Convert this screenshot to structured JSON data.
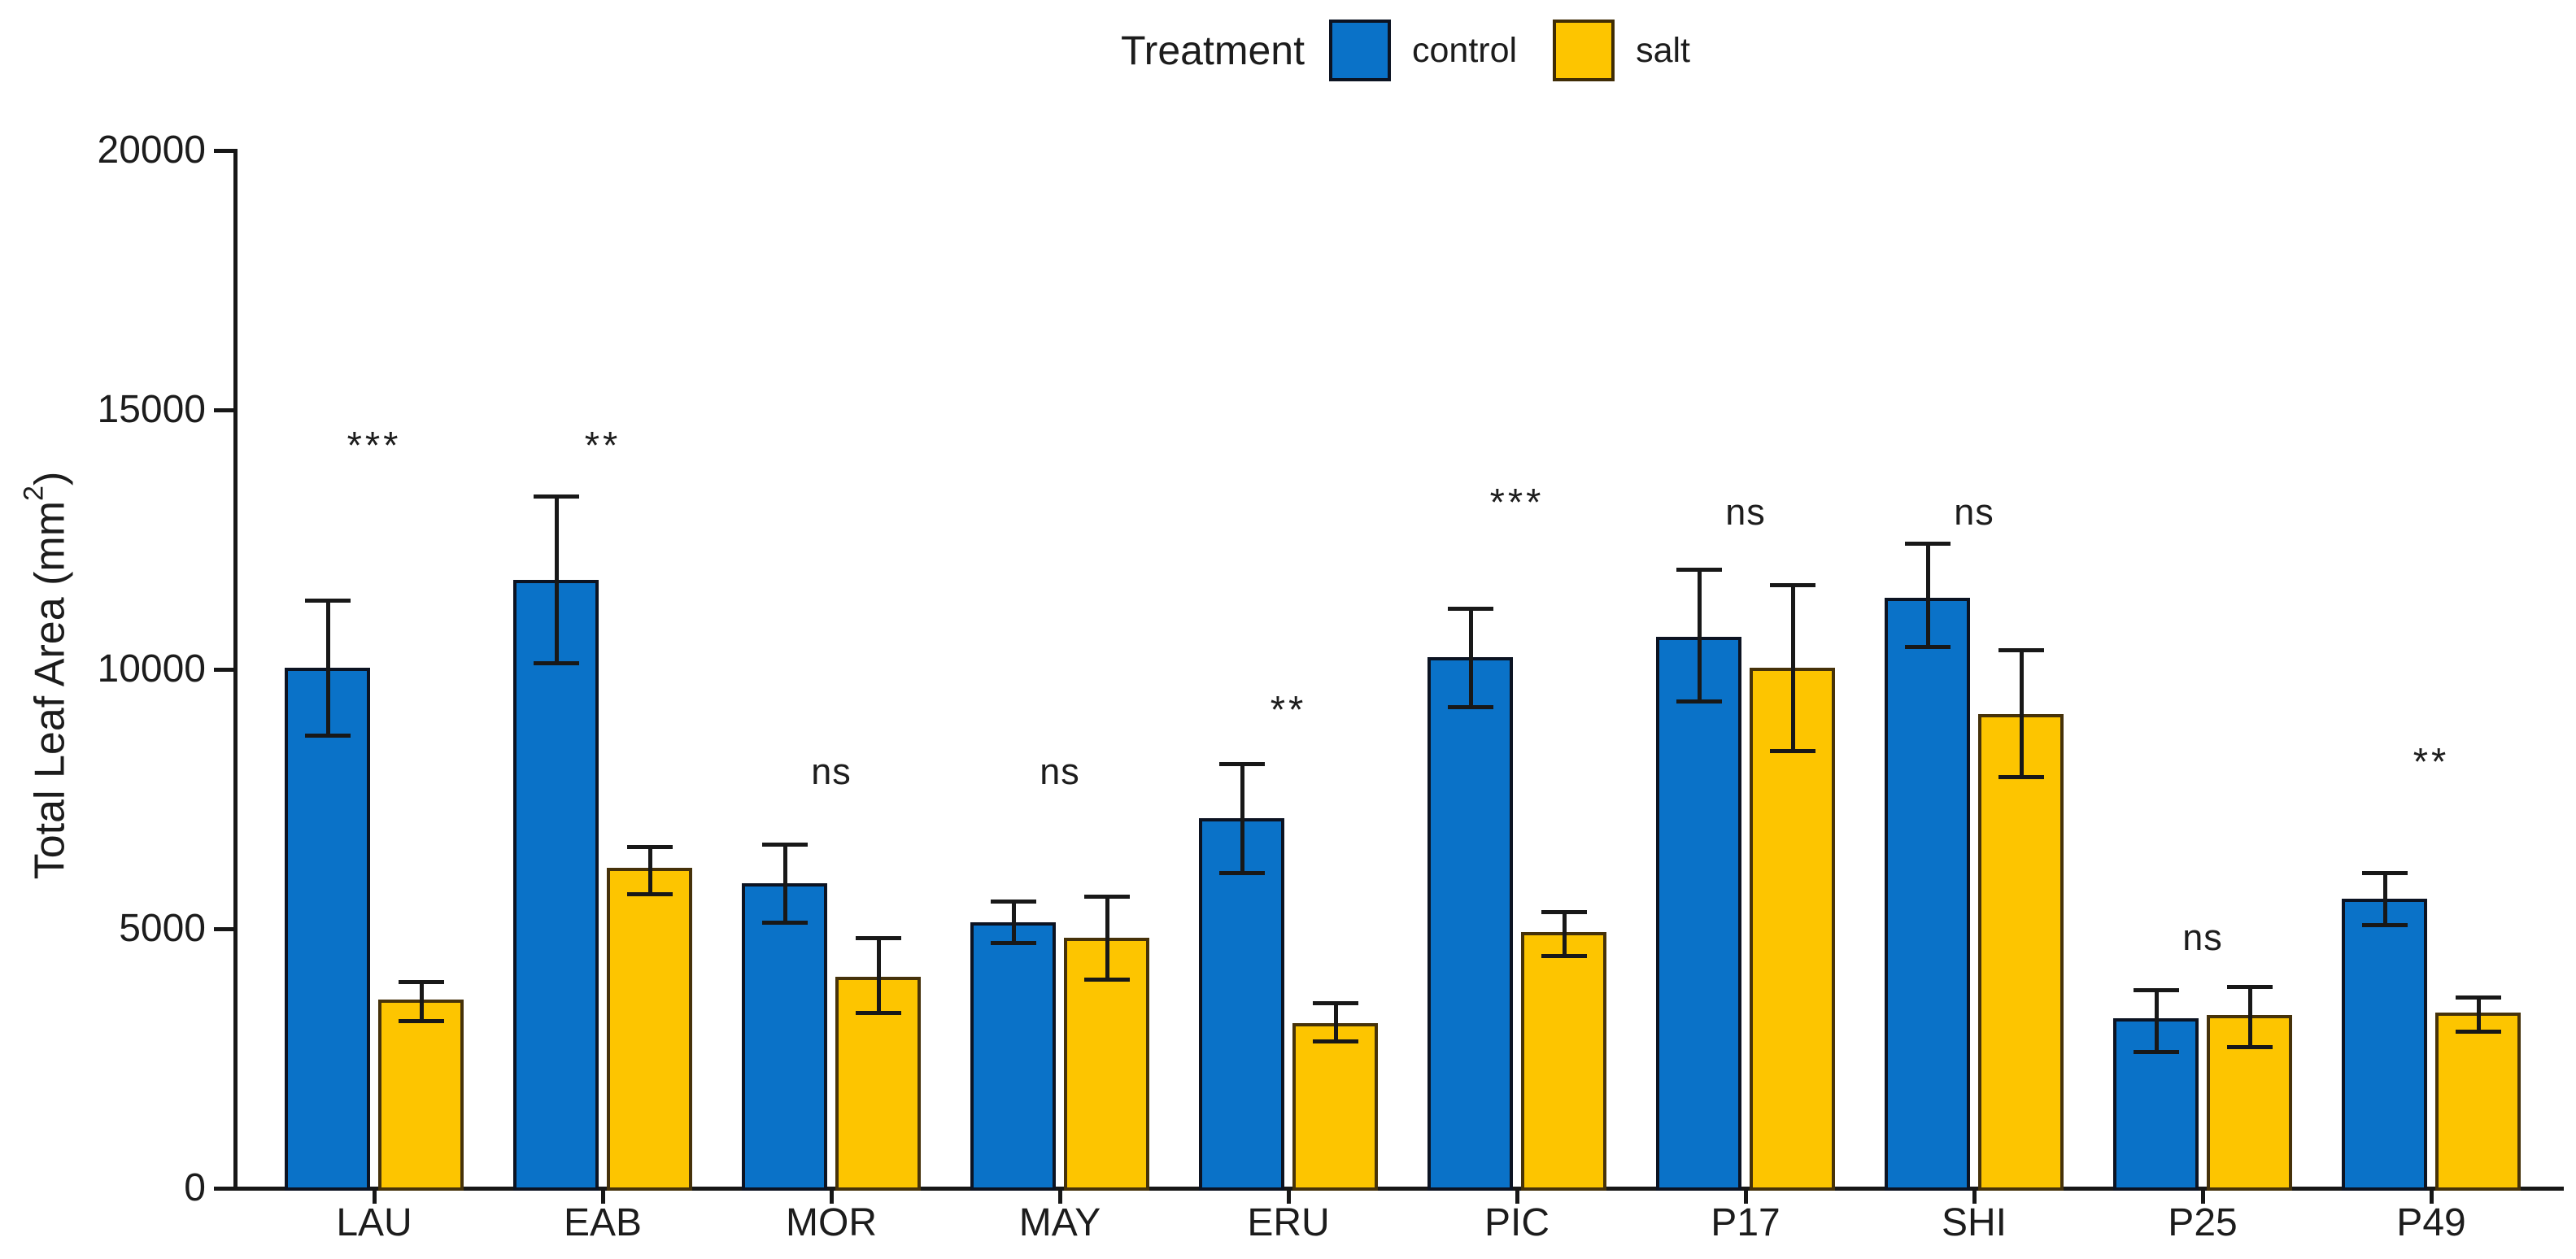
{
  "chart_data": {
    "type": "bar",
    "title": "",
    "ylabel": "Total Leaf Area (mm²)",
    "ylabel_parts": {
      "main": "Total Leaf Area (mm",
      "sup": "2",
      "end": ")"
    },
    "xlabel": "",
    "ylim": [
      0,
      20000
    ],
    "y_ticks": [
      0,
      5000,
      10000,
      15000,
      20000
    ],
    "y_tick_labels": [
      "0",
      "5000",
      "10000",
      "15000",
      "20000"
    ],
    "grid": "off",
    "legend": {
      "title": "Treatment",
      "position": "top-center",
      "entries": [
        {
          "label": "control",
          "color": "#0a72c8"
        },
        {
          "label": "salt",
          "color": "#fdc500"
        }
      ]
    },
    "categories": [
      "LAU",
      "EAB",
      "MOR",
      "MAY",
      "ERU",
      "PIC",
      "P17",
      "SHI",
      "P25",
      "P49"
    ],
    "series": [
      {
        "name": "control",
        "color": "#0a72c8",
        "border_color": "#0c1322",
        "values": [
          10000,
          11700,
          5850,
          5100,
          7100,
          10200,
          10600,
          11350,
          3250,
          5550
        ],
        "err_low": [
          8700,
          10100,
          5100,
          4700,
          6050,
          9250,
          9350,
          10400,
          2600,
          5050
        ],
        "err_high": [
          11300,
          13300,
          6600,
          5500,
          8150,
          11150,
          11900,
          12400,
          3800,
          6050
        ]
      },
      {
        "name": "salt",
        "color": "#fdc500",
        "border_color": "#46320a",
        "values": [
          3600,
          6150,
          4050,
          4800,
          3150,
          4900,
          10000,
          9100,
          3300,
          3350
        ],
        "err_low": [
          3200,
          5650,
          3350,
          4000,
          2800,
          4450,
          8400,
          7900,
          2700,
          3000
        ],
        "err_high": [
          3950,
          6550,
          4800,
          5600,
          3550,
          5300,
          11600,
          10350,
          3850,
          3650
        ]
      }
    ],
    "significance": {
      "labels": [
        "***",
        "**",
        "ns",
        "ns",
        "**",
        "***",
        "ns",
        "ns",
        "ns",
        "**"
      ],
      "levels": [
        14300,
        14300,
        8000,
        8000,
        9200,
        13200,
        13000,
        13000,
        4800,
        8200
      ]
    },
    "error_bar_color": "#181818",
    "axis_color": "#171717",
    "background_color": "#ffffff"
  }
}
